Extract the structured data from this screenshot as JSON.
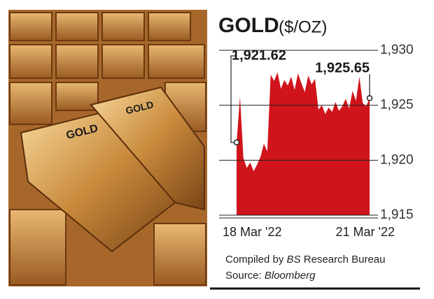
{
  "chart_data": {
    "type": "area",
    "title": "GOLD",
    "subtitle": "($/OZ)",
    "categories": [
      "18 Mar '22",
      null,
      null,
      null,
      null,
      null,
      null,
      null,
      null,
      null,
      null,
      null,
      null,
      null,
      null,
      null,
      null,
      null,
      null,
      null,
      null,
      null,
      null,
      null,
      null,
      null,
      null,
      null,
      null,
      null,
      null,
      null,
      null,
      null,
      null,
      null,
      null,
      null,
      null,
      "21 Mar '22"
    ],
    "values": [
      1921.62,
      1925.8,
      1920.2,
      1919.3,
      1919.8,
      1919.0,
      1919.6,
      1920.3,
      1921.5,
      1920.8,
      1927.8,
      1927.2,
      1928.0,
      1926.5,
      1927.3,
      1926.8,
      1927.6,
      1926.4,
      1927.9,
      1927.0,
      1926.2,
      1927.7,
      1926.9,
      1927.4,
      1924.6,
      1925.0,
      1924.2,
      1924.8,
      1924.4,
      1925.3,
      1924.5,
      1924.9,
      1925.6,
      1924.7,
      1926.3,
      1925.4,
      1927.6,
      1925.2,
      1924.9,
      1925.65
    ],
    "value_labels": [
      "1,921.62",
      null,
      null,
      null,
      null,
      null,
      null,
      null,
      null,
      null,
      null,
      null,
      null,
      null,
      null,
      null,
      null,
      null,
      null,
      null,
      null,
      null,
      null,
      null,
      null,
      null,
      null,
      null,
      null,
      null,
      null,
      null,
      null,
      null,
      null,
      null,
      null,
      null,
      null,
      "1,925.65"
    ],
    "color": "#d0141c",
    "ylim": [
      1915,
      1930
    ],
    "yticks": [
      {
        "value": 1915,
        "label": "1,915"
      },
      {
        "value": 1920,
        "label": "1,920"
      },
      {
        "value": 1925,
        "label": "1,925"
      },
      {
        "value": 1930,
        "label": "1,930"
      }
    ],
    "grid": true,
    "credit": [
      "Compiled by",
      "BS",
      "Research Bureau"
    ],
    "source": [
      "Source:",
      "Bloomberg"
    ]
  }
}
